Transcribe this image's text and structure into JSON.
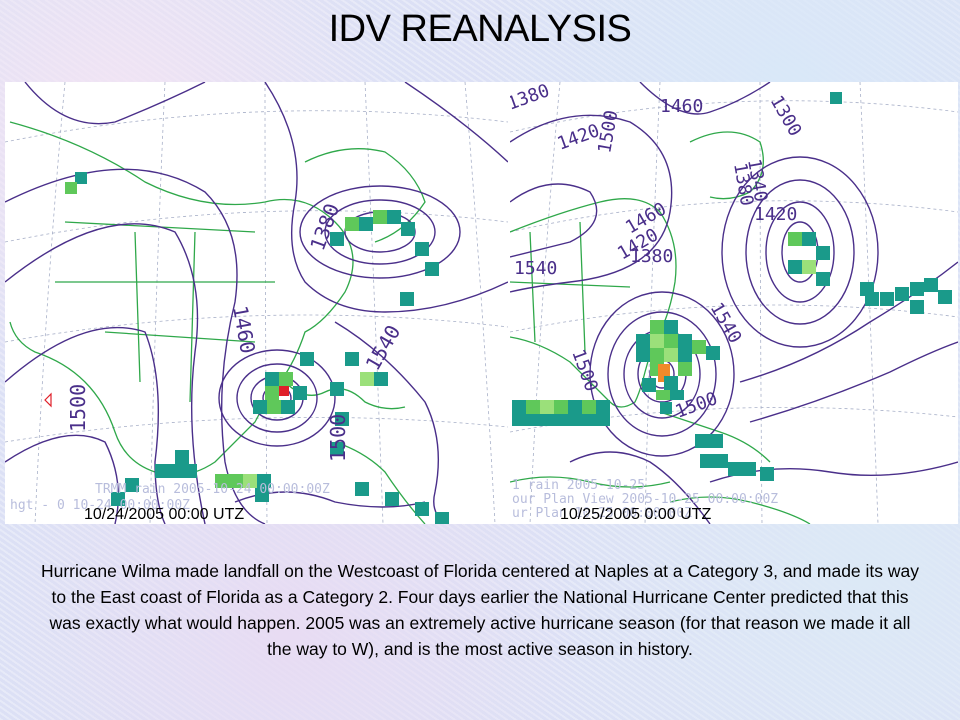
{
  "slide": {
    "title": "IDV REANALYSIS",
    "left_map": {
      "date_label": "10/24/2005 00:00 UTZ",
      "contour_labels": [
        "1500",
        "1460",
        "1380",
        "1540",
        "1500"
      ],
      "stamps": [
        "TRMM rain 2005-10-24 00:00:00Z",
        "hgt - 0 10-24 00:00:00Z"
      ]
    },
    "right_map": {
      "date_label": "10/25/2005 0:00 UTZ",
      "contour_labels": [
        "1380",
        "1460",
        "1420",
        "1500",
        "1300",
        "1340",
        "1380",
        "1420",
        "1460",
        "1540",
        "1420",
        "1380",
        "1500",
        "1540",
        "1500"
      ],
      "stamps": [
        "1 rain 2005-10-25",
        "our Plan View 2005-10-25 00:00:00Z",
        "ur Plan 10-25 00:00:00Z"
      ]
    },
    "description": "Hurricane Wilma made landfall on the Westcoast of Florida centered at Naples at a Category 3, and made its way to the East coast of Florida as a Category 2. Four days earlier the National Hurricane Center predicted that this was exactly what would happen. 2005 was an extremely active hurricane season (for that reason we made it all the way to W), and is the most active season in history.",
    "colors": {
      "contour": "#4a2f8a",
      "map_lines": "#2fa84a",
      "rain_teal": "#1a9a8a",
      "rain_green": "#5fc85a",
      "rain_light": "#9be07a",
      "rain_orange": "#f08a2a",
      "rain_red": "#e0202a"
    }
  }
}
